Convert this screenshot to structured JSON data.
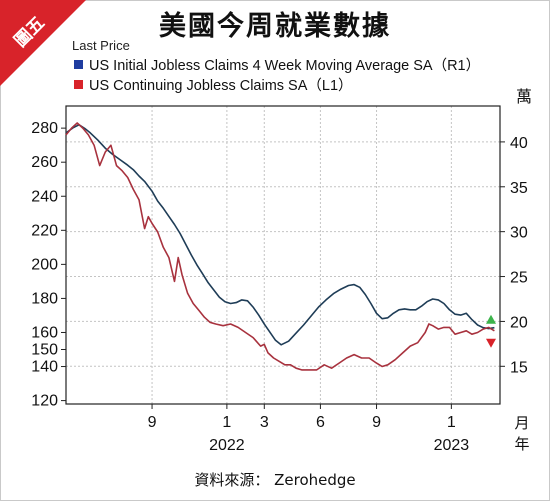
{
  "badge": "圖五",
  "title": "美國今周就業數據",
  "source": "資料來源： Zerohedge",
  "chart_data": {
    "type": "line",
    "header_label": "Last Price",
    "right_unit": "萬",
    "month_axis_label": "月",
    "year_axis_label": "年",
    "x_ticks": [
      {
        "label": "9",
        "t": 2
      },
      {
        "label": "1",
        "t": 6
      },
      {
        "label": "3",
        "t": 8
      },
      {
        "label": "6",
        "t": 11
      },
      {
        "label": "9",
        "t": 14
      },
      {
        "label": "1",
        "t": 18
      }
    ],
    "year_labels": [
      {
        "label": "2022",
        "t": 6
      },
      {
        "label": "2023",
        "t": 18
      }
    ],
    "x_range": [
      -2.6,
      20.6
    ],
    "left_axis": {
      "ylim": [
        118,
        293
      ],
      "ticks": [
        120,
        140,
        150,
        160,
        180,
        200,
        220,
        240,
        260,
        280
      ]
    },
    "right_axis": {
      "ylim": [
        10.8,
        44
      ],
      "ticks": [
        15,
        20,
        25,
        30,
        35,
        40
      ]
    },
    "series": [
      {
        "name": "US Initial Jobless Claims 4 Week Moving Average SA（R1）",
        "color": "#1f3d57",
        "legend_color": "#1f3da0",
        "axis": "right",
        "end_marker_color": "#3cb44b",
        "points": [
          [
            -2.6,
            41.0
          ],
          [
            -2.2,
            41.6
          ],
          [
            -1.9,
            41.9
          ],
          [
            -1.6,
            41.5
          ],
          [
            -1.3,
            41.0
          ],
          [
            -0.9,
            40.2
          ],
          [
            -0.5,
            39.3
          ],
          [
            -0.1,
            38.6
          ],
          [
            0.3,
            38.0
          ],
          [
            0.7,
            37.4
          ],
          [
            1.0,
            36.9
          ],
          [
            1.3,
            36.2
          ],
          [
            1.6,
            35.6
          ],
          [
            2.0,
            34.5
          ],
          [
            2.3,
            33.4
          ],
          [
            2.6,
            32.6
          ],
          [
            2.9,
            31.7
          ],
          [
            3.2,
            30.8
          ],
          [
            3.5,
            29.8
          ],
          [
            3.8,
            28.6
          ],
          [
            4.1,
            27.4
          ],
          [
            4.4,
            26.3
          ],
          [
            4.7,
            25.3
          ],
          [
            5.0,
            24.3
          ],
          [
            5.3,
            23.5
          ],
          [
            5.6,
            22.7
          ],
          [
            5.9,
            22.2
          ],
          [
            6.2,
            22.0
          ],
          [
            6.5,
            22.1
          ],
          [
            6.8,
            22.4
          ],
          [
            7.1,
            22.3
          ],
          [
            7.4,
            21.6
          ],
          [
            7.7,
            20.7
          ],
          [
            8.0,
            19.7
          ],
          [
            8.3,
            18.8
          ],
          [
            8.6,
            17.9
          ],
          [
            8.9,
            17.4
          ],
          [
            9.3,
            17.8
          ],
          [
            9.7,
            18.7
          ],
          [
            10.1,
            19.6
          ],
          [
            10.5,
            20.6
          ],
          [
            10.9,
            21.6
          ],
          [
            11.3,
            22.4
          ],
          [
            11.7,
            23.1
          ],
          [
            12.1,
            23.6
          ],
          [
            12.5,
            24.0
          ],
          [
            12.8,
            24.1
          ],
          [
            13.1,
            23.8
          ],
          [
            13.4,
            23.0
          ],
          [
            13.7,
            22.0
          ],
          [
            14.0,
            20.9
          ],
          [
            14.3,
            20.3
          ],
          [
            14.6,
            20.4
          ],
          [
            14.9,
            20.9
          ],
          [
            15.2,
            21.3
          ],
          [
            15.5,
            21.4
          ],
          [
            15.8,
            21.3
          ],
          [
            16.1,
            21.3
          ],
          [
            16.4,
            21.7
          ],
          [
            16.7,
            22.2
          ],
          [
            17.0,
            22.5
          ],
          [
            17.3,
            22.4
          ],
          [
            17.6,
            22.0
          ],
          [
            17.9,
            21.3
          ],
          [
            18.2,
            20.8
          ],
          [
            18.5,
            20.7
          ],
          [
            18.8,
            20.9
          ],
          [
            19.1,
            20.2
          ],
          [
            19.4,
            19.6
          ],
          [
            19.7,
            19.3
          ],
          [
            20.0,
            19.2
          ],
          [
            20.3,
            19.3
          ]
        ]
      },
      {
        "name": "US Continuing Jobless Claims SA（L1）",
        "color": "#a8323e",
        "legend_color": "#d8232a",
        "axis": "left",
        "end_marker_color": "#d8232a",
        "points": [
          [
            -2.6,
            276
          ],
          [
            -2.3,
            280
          ],
          [
            -2.0,
            283
          ],
          [
            -1.7,
            280
          ],
          [
            -1.4,
            276
          ],
          [
            -1.1,
            270
          ],
          [
            -0.8,
            258
          ],
          [
            -0.5,
            266
          ],
          [
            -0.2,
            270
          ],
          [
            0.1,
            258
          ],
          [
            0.4,
            255
          ],
          [
            0.7,
            251
          ],
          [
            1.0,
            244
          ],
          [
            1.3,
            238
          ],
          [
            1.6,
            221
          ],
          [
            1.8,
            228
          ],
          [
            2.0,
            224
          ],
          [
            2.3,
            219
          ],
          [
            2.6,
            210
          ],
          [
            2.9,
            204
          ],
          [
            3.2,
            190
          ],
          [
            3.4,
            204
          ],
          [
            3.6,
            194
          ],
          [
            3.9,
            183
          ],
          [
            4.2,
            177
          ],
          [
            4.5,
            173
          ],
          [
            4.8,
            169
          ],
          [
            5.1,
            166
          ],
          [
            5.4,
            165
          ],
          [
            5.8,
            164
          ],
          [
            6.2,
            165
          ],
          [
            6.6,
            163
          ],
          [
            7.0,
            160
          ],
          [
            7.4,
            157
          ],
          [
            7.8,
            152
          ],
          [
            8.0,
            153
          ],
          [
            8.2,
            148
          ],
          [
            8.5,
            145
          ],
          [
            8.8,
            143
          ],
          [
            9.1,
            141
          ],
          [
            9.4,
            141
          ],
          [
            9.7,
            139
          ],
          [
            10.0,
            138
          ],
          [
            10.4,
            138
          ],
          [
            10.8,
            138
          ],
          [
            11.2,
            141
          ],
          [
            11.6,
            139
          ],
          [
            12.0,
            142
          ],
          [
            12.4,
            145
          ],
          [
            12.8,
            147
          ],
          [
            13.2,
            145
          ],
          [
            13.6,
            145
          ],
          [
            14.0,
            142
          ],
          [
            14.3,
            140
          ],
          [
            14.6,
            141
          ],
          [
            15.0,
            144
          ],
          [
            15.4,
            148
          ],
          [
            15.8,
            152
          ],
          [
            16.2,
            154
          ],
          [
            16.6,
            160
          ],
          [
            16.8,
            165
          ],
          [
            17.0,
            164
          ],
          [
            17.3,
            162
          ],
          [
            17.6,
            163
          ],
          [
            17.9,
            163
          ],
          [
            18.2,
            159
          ],
          [
            18.5,
            160
          ],
          [
            18.8,
            161
          ],
          [
            19.1,
            159
          ],
          [
            19.4,
            160
          ],
          [
            19.7,
            162
          ],
          [
            20.0,
            163
          ],
          [
            20.3,
            161
          ]
        ]
      }
    ]
  }
}
